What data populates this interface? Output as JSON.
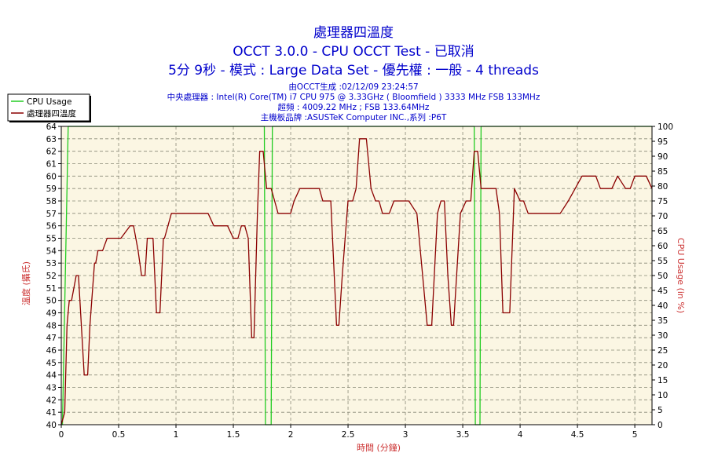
{
  "header": {
    "title": "處理器四溫度",
    "subtitle": "OCCT 3.0.0 - CPU OCCT Test - 已取消",
    "subtitle2": "5分 9秒 - 模式 : Large Data Set - 優先權 : 一般 - 4 threads",
    "info": [
      "由OCCT生成 :02/12/09 23:24:57",
      "中央處理器 : Intel(R) Core(TM) i7 CPU 975 @ 3.33GHz ( Bloomfield ) 3333 MHz FSB 133MHz",
      "超頻 : 4009.22 MHz ; FSB 133.64MHz",
      "主機板品牌 :ASUSTeK Computer INC.,系列 :P6T"
    ]
  },
  "chart_data": {
    "type": "line",
    "xlabel": "時間 (分鐘)",
    "ylabel_left": "溫度 (攝氏)",
    "ylabel_right": "CPU Usage (in %)",
    "xlim": [
      0,
      5.15
    ],
    "ylim_left": [
      40,
      64
    ],
    "ylim_right": [
      0,
      100
    ],
    "x_ticks": [
      0,
      0.5,
      1,
      1.5,
      2,
      2.5,
      3,
      3.5,
      4,
      4.5,
      5
    ],
    "y_ticks_left": [
      40,
      41,
      42,
      43,
      44,
      45,
      46,
      47,
      48,
      49,
      50,
      51,
      52,
      53,
      54,
      55,
      56,
      57,
      58,
      59,
      60,
      61,
      62,
      63,
      64
    ],
    "y_ticks_right": [
      0,
      5,
      10,
      15,
      20,
      25,
      30,
      35,
      40,
      45,
      50,
      55,
      60,
      65,
      70,
      75,
      80,
      85,
      90,
      95,
      100
    ],
    "grid": true,
    "legend": {
      "position": "top-left",
      "entries": [
        "CPU Usage",
        "處理器四溫度"
      ]
    },
    "colors": {
      "cpu_usage": "#22cc22",
      "temperature": "#8b0000",
      "plot_bg": "#fbf6e3",
      "title": "#0000cc",
      "axis_label": "#cc3333"
    },
    "series": [
      {
        "name": "CPU Usage",
        "axis": "right",
        "x": [
          0,
          0.01,
          0.06,
          1.77,
          1.78,
          1.83,
          1.84,
          3.6,
          3.61,
          3.65,
          3.66,
          5.15
        ],
        "y": [
          0,
          0,
          100,
          100,
          0,
          0,
          100,
          100,
          0,
          0,
          100,
          100
        ]
      },
      {
        "name": "處理器四溫度",
        "axis": "left",
        "x": [
          0.0,
          0.03,
          0.05,
          0.07,
          0.09,
          0.13,
          0.15,
          0.2,
          0.23,
          0.25,
          0.29,
          0.3,
          0.32,
          0.36,
          0.4,
          0.47,
          0.52,
          0.6,
          0.63,
          0.67,
          0.7,
          0.73,
          0.75,
          0.77,
          0.8,
          0.83,
          0.86,
          0.89,
          0.9,
          0.93,
          0.96,
          0.99,
          1.03,
          1.07,
          1.1,
          1.26,
          1.28,
          1.33,
          1.38,
          1.41,
          1.45,
          1.5,
          1.54,
          1.57,
          1.6,
          1.63,
          1.66,
          1.68,
          1.71,
          1.73,
          1.76,
          1.79,
          1.83,
          1.86,
          1.89,
          2.0,
          2.03,
          2.08,
          2.15,
          2.25,
          2.28,
          2.35,
          2.38,
          2.4,
          2.42,
          2.45,
          2.5,
          2.54,
          2.57,
          2.6,
          2.66,
          2.7,
          2.74,
          2.77,
          2.8,
          2.86,
          2.9,
          2.96,
          3.03,
          3.1,
          3.15,
          3.19,
          3.23,
          3.28,
          3.31,
          3.34,
          3.37,
          3.4,
          3.42,
          3.48,
          3.53,
          3.57,
          3.6,
          3.63,
          3.66,
          3.69,
          3.72,
          3.76,
          3.79,
          3.82,
          3.85,
          3.88,
          3.91,
          3.95,
          4.0,
          4.03,
          4.07,
          4.1,
          4.15,
          4.22,
          4.3,
          4.35,
          4.42,
          4.48,
          4.54,
          4.66,
          4.7,
          4.8,
          4.85,
          4.92,
          4.96,
          5.0,
          5.05,
          5.1,
          5.15
        ],
        "y": [
          40,
          41,
          48,
          50,
          50,
          52,
          52,
          44,
          44,
          48,
          53,
          53,
          54,
          54,
          55,
          55,
          55,
          56,
          56,
          54,
          52,
          52,
          55,
          55,
          55,
          49,
          49,
          55,
          55,
          56,
          57,
          57,
          57,
          57,
          57,
          57,
          57,
          56,
          56,
          56,
          56,
          55,
          55,
          56,
          56,
          55,
          47,
          47,
          57,
          62,
          62,
          59,
          59,
          58,
          57,
          57,
          58,
          59,
          59,
          59,
          58,
          58,
          52,
          48,
          48,
          52,
          58,
          58,
          59,
          63,
          63,
          59,
          58,
          58,
          57,
          57,
          58,
          58,
          58,
          57,
          52,
          48,
          48,
          57,
          58,
          58,
          52,
          48,
          48,
          57,
          58,
          58,
          62,
          62,
          59,
          59,
          59,
          59,
          59,
          57,
          49,
          49,
          49,
          59,
          58,
          58,
          57,
          57,
          57,
          57,
          57,
          57,
          58,
          59,
          60,
          60,
          59,
          59,
          60,
          59,
          59,
          60,
          60,
          60,
          59
        ]
      }
    ]
  }
}
